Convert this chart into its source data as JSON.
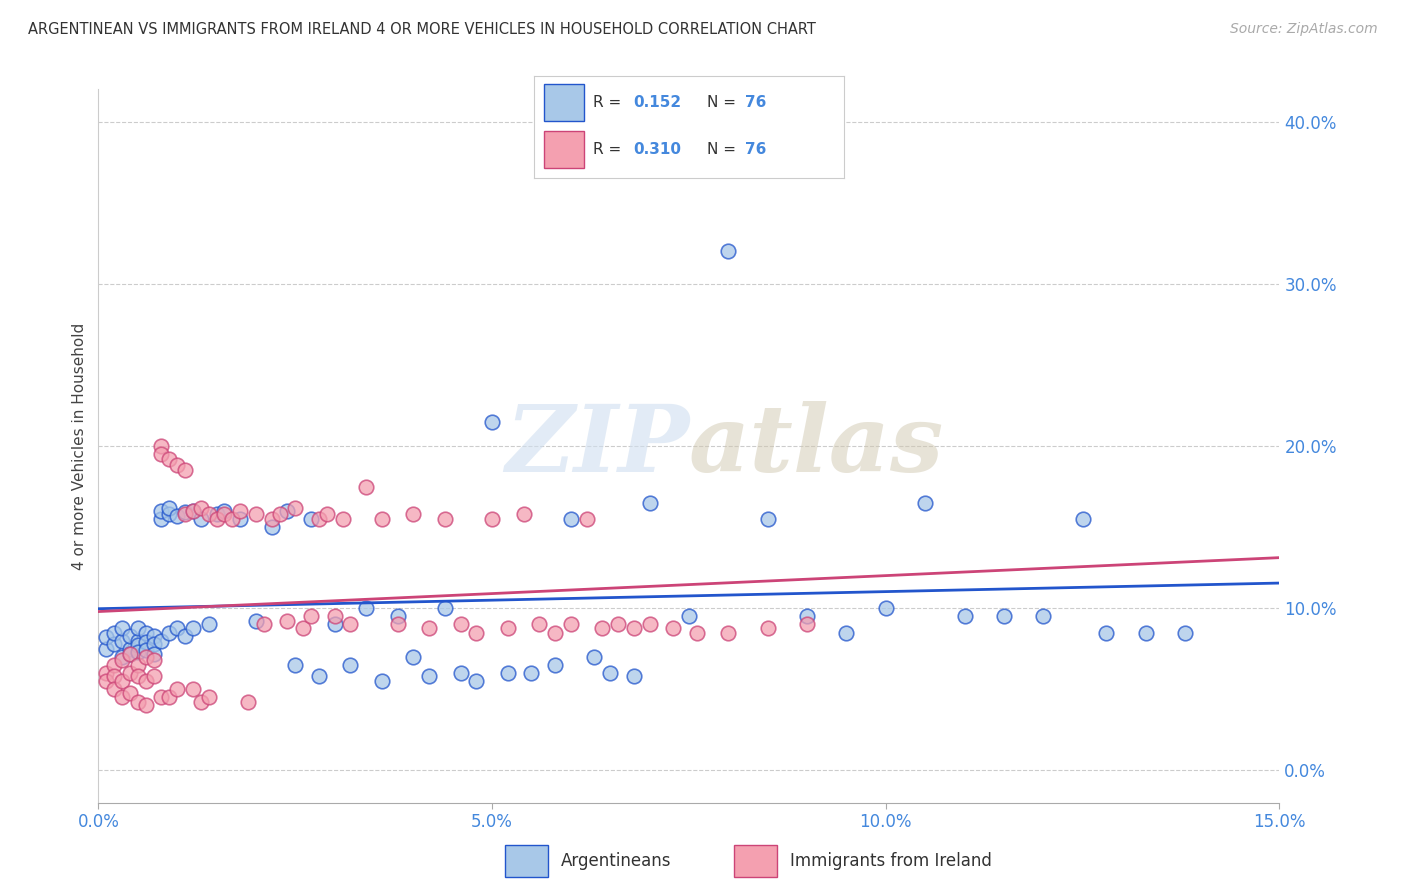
{
  "title": "ARGENTINEAN VS IMMIGRANTS FROM IRELAND 4 OR MORE VEHICLES IN HOUSEHOLD CORRELATION CHART",
  "source": "Source: ZipAtlas.com",
  "ylabel": "4 or more Vehicles in Household",
  "xlim": [
    0.0,
    0.15
  ],
  "ylim": [
    -0.02,
    0.42
  ],
  "xticks": [
    0.0,
    0.05,
    0.1,
    0.15
  ],
  "yticks_right": [
    0.0,
    0.1,
    0.2,
    0.3,
    0.4
  ],
  "color_blue": "#a8c8e8",
  "color_pink": "#f4a0b0",
  "color_line_blue": "#2255cc",
  "color_line_pink": "#cc4477",
  "color_axis_labels": "#4488dd",
  "watermark_text": "ZIPatlas",
  "scatter_blue_x": [
    0.001,
    0.001,
    0.002,
    0.002,
    0.003,
    0.003,
    0.003,
    0.004,
    0.004,
    0.004,
    0.005,
    0.005,
    0.005,
    0.005,
    0.006,
    0.006,
    0.006,
    0.007,
    0.007,
    0.007,
    0.008,
    0.008,
    0.008,
    0.009,
    0.009,
    0.009,
    0.01,
    0.01,
    0.011,
    0.011,
    0.012,
    0.012,
    0.013,
    0.014,
    0.015,
    0.016,
    0.018,
    0.02,
    0.022,
    0.024,
    0.025,
    0.027,
    0.028,
    0.03,
    0.032,
    0.034,
    0.036,
    0.038,
    0.04,
    0.042,
    0.044,
    0.046,
    0.048,
    0.05,
    0.052,
    0.055,
    0.058,
    0.06,
    0.063,
    0.065,
    0.068,
    0.07,
    0.075,
    0.08,
    0.085,
    0.09,
    0.095,
    0.1,
    0.105,
    0.11,
    0.115,
    0.12,
    0.125,
    0.128,
    0.133,
    0.138
  ],
  "scatter_blue_y": [
    0.075,
    0.082,
    0.078,
    0.085,
    0.08,
    0.088,
    0.07,
    0.075,
    0.083,
    0.072,
    0.08,
    0.088,
    0.077,
    0.073,
    0.085,
    0.079,
    0.074,
    0.083,
    0.078,
    0.072,
    0.155,
    0.16,
    0.08,
    0.158,
    0.162,
    0.085,
    0.157,
    0.088,
    0.159,
    0.083,
    0.16,
    0.088,
    0.155,
    0.09,
    0.158,
    0.16,
    0.155,
    0.092,
    0.15,
    0.16,
    0.065,
    0.155,
    0.058,
    0.09,
    0.065,
    0.1,
    0.055,
    0.095,
    0.07,
    0.058,
    0.1,
    0.06,
    0.055,
    0.215,
    0.06,
    0.06,
    0.065,
    0.155,
    0.07,
    0.06,
    0.058,
    0.165,
    0.095,
    0.32,
    0.155,
    0.095,
    0.085,
    0.1,
    0.165,
    0.095,
    0.095,
    0.095,
    0.155,
    0.085,
    0.085,
    0.085
  ],
  "scatter_pink_x": [
    0.001,
    0.001,
    0.002,
    0.002,
    0.002,
    0.003,
    0.003,
    0.003,
    0.004,
    0.004,
    0.004,
    0.005,
    0.005,
    0.005,
    0.006,
    0.006,
    0.006,
    0.007,
    0.007,
    0.008,
    0.008,
    0.008,
    0.009,
    0.009,
    0.01,
    0.01,
    0.011,
    0.011,
    0.012,
    0.012,
    0.013,
    0.013,
    0.014,
    0.014,
    0.015,
    0.016,
    0.017,
    0.018,
    0.019,
    0.02,
    0.021,
    0.022,
    0.023,
    0.024,
    0.025,
    0.026,
    0.027,
    0.028,
    0.029,
    0.03,
    0.031,
    0.032,
    0.034,
    0.036,
    0.038,
    0.04,
    0.042,
    0.044,
    0.046,
    0.048,
    0.05,
    0.052,
    0.054,
    0.056,
    0.058,
    0.06,
    0.062,
    0.064,
    0.066,
    0.068,
    0.07,
    0.073,
    0.076,
    0.08,
    0.085,
    0.09
  ],
  "scatter_pink_y": [
    0.06,
    0.055,
    0.065,
    0.058,
    0.05,
    0.068,
    0.055,
    0.045,
    0.072,
    0.06,
    0.048,
    0.065,
    0.058,
    0.042,
    0.07,
    0.055,
    0.04,
    0.068,
    0.058,
    0.2,
    0.195,
    0.045,
    0.192,
    0.045,
    0.188,
    0.05,
    0.185,
    0.158,
    0.16,
    0.05,
    0.162,
    0.042,
    0.158,
    0.045,
    0.155,
    0.158,
    0.155,
    0.16,
    0.042,
    0.158,
    0.09,
    0.155,
    0.158,
    0.092,
    0.162,
    0.088,
    0.095,
    0.155,
    0.158,
    0.095,
    0.155,
    0.09,
    0.175,
    0.155,
    0.09,
    0.158,
    0.088,
    0.155,
    0.09,
    0.085,
    0.155,
    0.088,
    0.158,
    0.09,
    0.085,
    0.09,
    0.155,
    0.088,
    0.09,
    0.088,
    0.09,
    0.088,
    0.085,
    0.085,
    0.088,
    0.09
  ]
}
